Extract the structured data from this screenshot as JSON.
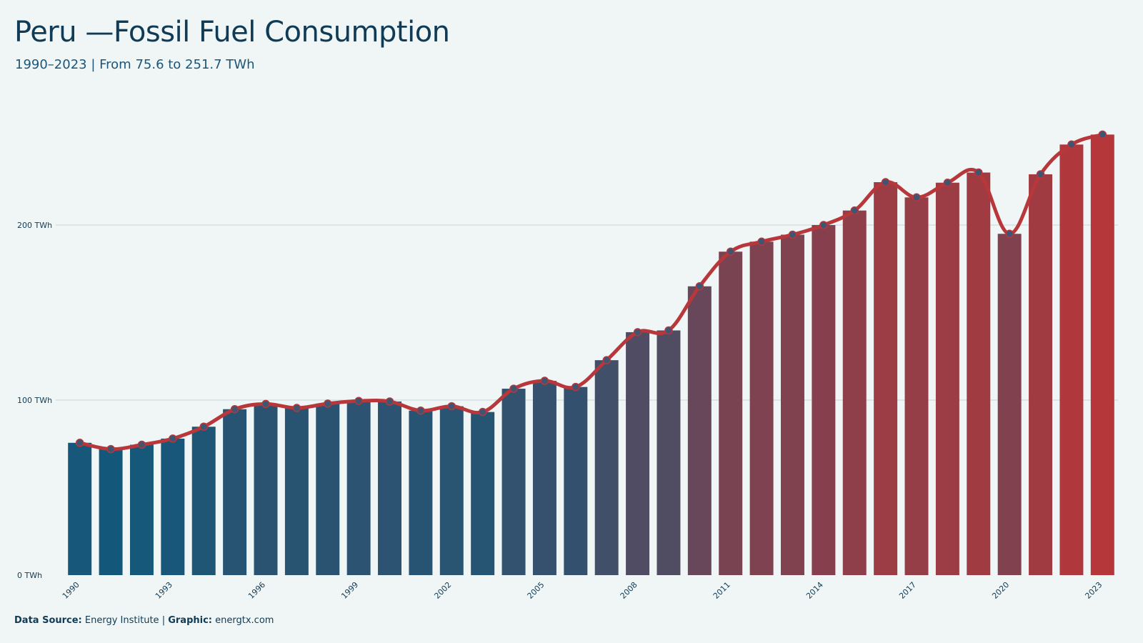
{
  "title": "Peru —Fossil Fuel Consumption",
  "subtitle": "1990–2023 | From 75.6 to 251.7 TWh",
  "footer": {
    "source_label": "Data Source:",
    "source_value": "Energy Institute",
    "separator": "|",
    "graphic_label": "Graphic:",
    "graphic_value": "energtx.com"
  },
  "colors": {
    "background": "#f0f6f6",
    "bar_start": "#13587b",
    "bar_end": "#b5373a",
    "line": "#b8373a",
    "marker": "#3e5573",
    "grid": "#c9d6dc"
  },
  "chart_data": {
    "type": "bar",
    "categories": [
      "1990",
      "1991",
      "1992",
      "1993",
      "1994",
      "1995",
      "1996",
      "1997",
      "1998",
      "1999",
      "2000",
      "2001",
      "2002",
      "2003",
      "2004",
      "2005",
      "2006",
      "2007",
      "2008",
      "2009",
      "2010",
      "2011",
      "2012",
      "2013",
      "2014",
      "2015",
      "2016",
      "2017",
      "2018",
      "2019",
      "2020",
      "2021",
      "2022",
      "2023"
    ],
    "values": [
      75.6,
      72.0,
      74.5,
      78.0,
      84.8,
      94.8,
      97.8,
      95.5,
      98.0,
      99.5,
      99.2,
      94.0,
      96.5,
      93.2,
      106.5,
      111.0,
      107.5,
      122.8,
      138.8,
      139.8,
      165.0,
      184.8,
      190.5,
      194.5,
      200.0,
      208.3,
      224.5,
      215.8,
      224.2,
      230.0,
      195.0,
      229.0,
      246.0,
      251.7
    ],
    "ylim": [
      0,
      260
    ],
    "yticks": [
      0,
      100,
      200
    ],
    "ytick_labels": [
      "0 TWh",
      "100 TWh",
      "200 TWh"
    ],
    "xtick_labels": [
      "1990",
      "1993",
      "1996",
      "1999",
      "2002",
      "2005",
      "2008",
      "2011",
      "2014",
      "2017",
      "2020",
      "2023"
    ],
    "grid": true,
    "overlay": "line with markers"
  }
}
